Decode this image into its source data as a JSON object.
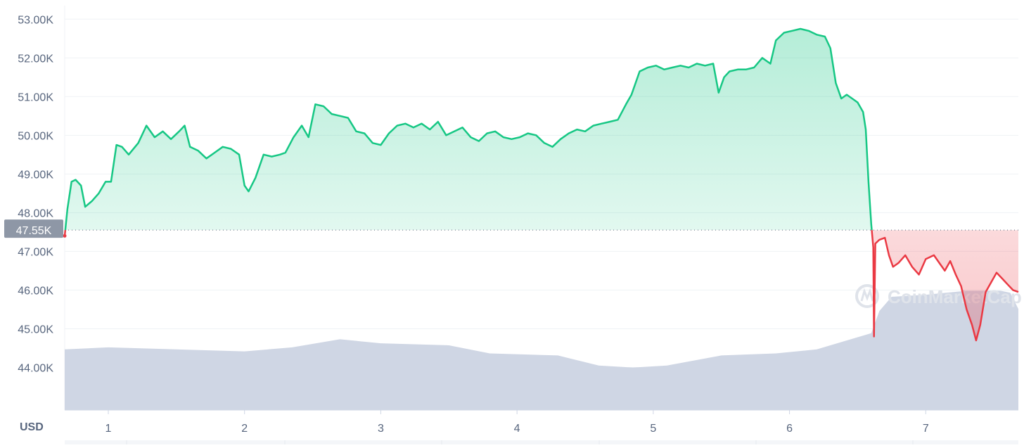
{
  "chart_data": {
    "type": "line",
    "currency_label": "USD",
    "reference_label": "47.55K",
    "reference_value": 47550,
    "watermark": "CoinMarketCap",
    "colors": {
      "up": "#16c784",
      "down": "#ea3943",
      "volume": "#cfd6e4",
      "reference_box": "#8e97a6"
    },
    "ylim": [
      42900,
      53350
    ],
    "y_ticks": [
      {
        "label": "53.00K",
        "value": 53000
      },
      {
        "label": "52.00K",
        "value": 52000
      },
      {
        "label": "51.00K",
        "value": 51000
      },
      {
        "label": "50.00K",
        "value": 50000
      },
      {
        "label": "49.00K",
        "value": 49000
      },
      {
        "label": "48.00K",
        "value": 48000
      },
      {
        "label": "47.00K",
        "value": 47000
      },
      {
        "label": "46.00K",
        "value": 46000
      },
      {
        "label": "45.00K",
        "value": 45000
      },
      {
        "label": "44.00K",
        "value": 44000
      }
    ],
    "xlim": [
      0.68,
      7.68
    ],
    "x_ticks": [
      {
        "label": "1",
        "value": 1
      },
      {
        "label": "2",
        "value": 2
      },
      {
        "label": "3",
        "value": 3
      },
      {
        "label": "4",
        "value": 4
      },
      {
        "label": "5",
        "value": 5
      },
      {
        "label": "6",
        "value": 6
      },
      {
        "label": "7",
        "value": 7
      }
    ],
    "price_series": [
      [
        0.68,
        47400
      ],
      [
        0.7,
        48100
      ],
      [
        0.73,
        48800
      ],
      [
        0.76,
        48850
      ],
      [
        0.8,
        48700
      ],
      [
        0.83,
        48150
      ],
      [
        0.88,
        48300
      ],
      [
        0.93,
        48500
      ],
      [
        0.98,
        48800
      ],
      [
        1.02,
        48800
      ],
      [
        1.06,
        49750
      ],
      [
        1.1,
        49700
      ],
      [
        1.15,
        49500
      ],
      [
        1.22,
        49800
      ],
      [
        1.28,
        50250
      ],
      [
        1.34,
        49950
      ],
      [
        1.4,
        50100
      ],
      [
        1.46,
        49900
      ],
      [
        1.52,
        50100
      ],
      [
        1.56,
        50250
      ],
      [
        1.6,
        49700
      ],
      [
        1.66,
        49600
      ],
      [
        1.72,
        49400
      ],
      [
        1.78,
        49550
      ],
      [
        1.84,
        49700
      ],
      [
        1.9,
        49650
      ],
      [
        1.96,
        49500
      ],
      [
        2.0,
        48700
      ],
      [
        2.03,
        48550
      ],
      [
        2.08,
        48900
      ],
      [
        2.14,
        49500
      ],
      [
        2.2,
        49450
      ],
      [
        2.26,
        49500
      ],
      [
        2.3,
        49550
      ],
      [
        2.36,
        49950
      ],
      [
        2.42,
        50250
      ],
      [
        2.47,
        49950
      ],
      [
        2.52,
        50800
      ],
      [
        2.58,
        50750
      ],
      [
        2.64,
        50550
      ],
      [
        2.7,
        50500
      ],
      [
        2.76,
        50450
      ],
      [
        2.82,
        50100
      ],
      [
        2.88,
        50050
      ],
      [
        2.94,
        49800
      ],
      [
        3.0,
        49750
      ],
      [
        3.06,
        50050
      ],
      [
        3.12,
        50250
      ],
      [
        3.18,
        50300
      ],
      [
        3.24,
        50200
      ],
      [
        3.3,
        50300
      ],
      [
        3.36,
        50150
      ],
      [
        3.42,
        50350
      ],
      [
        3.48,
        50000
      ],
      [
        3.54,
        50100
      ],
      [
        3.6,
        50200
      ],
      [
        3.66,
        49950
      ],
      [
        3.72,
        49850
      ],
      [
        3.78,
        50050
      ],
      [
        3.84,
        50100
      ],
      [
        3.9,
        49950
      ],
      [
        3.96,
        49900
      ],
      [
        4.02,
        49950
      ],
      [
        4.08,
        50050
      ],
      [
        4.14,
        50000
      ],
      [
        4.2,
        49800
      ],
      [
        4.26,
        49700
      ],
      [
        4.32,
        49900
      ],
      [
        4.38,
        50050
      ],
      [
        4.44,
        50150
      ],
      [
        4.5,
        50100
      ],
      [
        4.56,
        50250
      ],
      [
        4.62,
        50300
      ],
      [
        4.68,
        50350
      ],
      [
        4.74,
        50400
      ],
      [
        4.8,
        50800
      ],
      [
        4.84,
        51050
      ],
      [
        4.9,
        51650
      ],
      [
        4.96,
        51750
      ],
      [
        5.02,
        51800
      ],
      [
        5.08,
        51700
      ],
      [
        5.14,
        51750
      ],
      [
        5.2,
        51800
      ],
      [
        5.26,
        51750
      ],
      [
        5.32,
        51850
      ],
      [
        5.38,
        51800
      ],
      [
        5.44,
        51850
      ],
      [
        5.48,
        51100
      ],
      [
        5.52,
        51500
      ],
      [
        5.56,
        51650
      ],
      [
        5.62,
        51700
      ],
      [
        5.68,
        51700
      ],
      [
        5.74,
        51750
      ],
      [
        5.8,
        52000
      ],
      [
        5.86,
        51850
      ],
      [
        5.9,
        52450
      ],
      [
        5.96,
        52650
      ],
      [
        6.02,
        52700
      ],
      [
        6.08,
        52750
      ],
      [
        6.14,
        52700
      ],
      [
        6.2,
        52600
      ],
      [
        6.26,
        52550
      ],
      [
        6.3,
        52250
      ],
      [
        6.34,
        51350
      ],
      [
        6.38,
        50950
      ],
      [
        6.42,
        51050
      ],
      [
        6.46,
        50950
      ],
      [
        6.5,
        50850
      ],
      [
        6.54,
        50600
      ],
      [
        6.56,
        50150
      ],
      [
        6.58,
        48800
      ],
      [
        6.6,
        47700
      ],
      [
        6.615,
        47100
      ],
      [
        6.62,
        44800
      ],
      [
        6.63,
        47200
      ],
      [
        6.66,
        47300
      ],
      [
        6.7,
        47350
      ],
      [
        6.73,
        46900
      ],
      [
        6.76,
        46600
      ],
      [
        6.8,
        46700
      ],
      [
        6.85,
        46900
      ],
      [
        6.9,
        46600
      ],
      [
        6.95,
        46400
      ],
      [
        7.0,
        46800
      ],
      [
        7.06,
        46900
      ],
      [
        7.1,
        46700
      ],
      [
        7.14,
        46500
      ],
      [
        7.18,
        46750
      ],
      [
        7.22,
        46400
      ],
      [
        7.26,
        46100
      ],
      [
        7.3,
        45500
      ],
      [
        7.34,
        45100
      ],
      [
        7.37,
        44700
      ],
      [
        7.4,
        45100
      ],
      [
        7.44,
        45950
      ],
      [
        7.48,
        46200
      ],
      [
        7.52,
        46450
      ],
      [
        7.56,
        46300
      ],
      [
        7.6,
        46150
      ],
      [
        7.64,
        46000
      ],
      [
        7.68,
        45950
      ]
    ],
    "volume_series": [
      [
        0.68,
        0.15
      ],
      [
        1.0,
        0.155
      ],
      [
        1.5,
        0.15
      ],
      [
        2.0,
        0.145
      ],
      [
        2.35,
        0.155
      ],
      [
        2.7,
        0.175
      ],
      [
        3.0,
        0.165
      ],
      [
        3.5,
        0.16
      ],
      [
        3.8,
        0.14
      ],
      [
        4.3,
        0.135
      ],
      [
        4.6,
        0.11
      ],
      [
        4.85,
        0.105
      ],
      [
        5.1,
        0.11
      ],
      [
        5.5,
        0.135
      ],
      [
        5.9,
        0.14
      ],
      [
        6.2,
        0.15
      ],
      [
        6.45,
        0.175
      ],
      [
        6.6,
        0.19
      ],
      [
        6.66,
        0.245
      ],
      [
        6.75,
        0.28
      ],
      [
        7.0,
        0.285
      ],
      [
        7.3,
        0.295
      ],
      [
        7.55,
        0.295
      ],
      [
        7.62,
        0.29
      ],
      [
        7.68,
        0.25
      ]
    ]
  }
}
